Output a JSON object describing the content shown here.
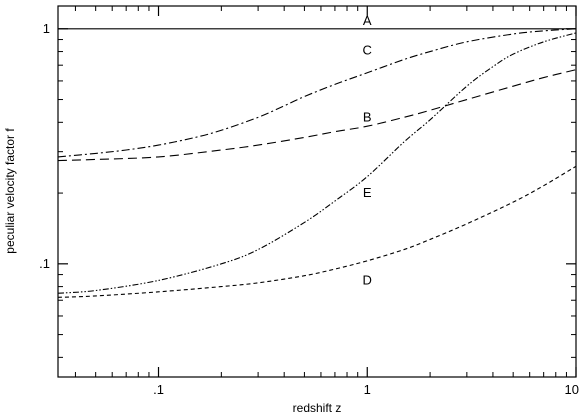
{
  "chart_data": {
    "type": "line",
    "title": "",
    "xlabel": "redshift z",
    "ylabel": "peculiar velocity factor f",
    "xscale": "log",
    "yscale": "log",
    "xlim": [
      0.033,
      10
    ],
    "ylim": [
      0.033,
      1.25
    ],
    "grid": false,
    "legend": "none",
    "x_ticks": [
      {
        "value": 0.1,
        "label": ".1"
      },
      {
        "value": 1,
        "label": "1"
      },
      {
        "value": 10,
        "label": "10"
      }
    ],
    "y_ticks": [
      {
        "value": 0.1,
        "label": ".1"
      },
      {
        "value": 1,
        "label": "1"
      }
    ],
    "x_minor_ticks": [
      0.04,
      0.05,
      0.06,
      0.07,
      0.08,
      0.09,
      0.2,
      0.3,
      0.4,
      0.5,
      0.6,
      0.7,
      0.8,
      0.9,
      2,
      3,
      4,
      5,
      6,
      7,
      8,
      9
    ],
    "y_minor_ticks": [
      0.04,
      0.05,
      0.06,
      0.07,
      0.08,
      0.09,
      0.2,
      0.3,
      0.4,
      0.5,
      0.6,
      0.7,
      0.8,
      0.9
    ],
    "series": [
      {
        "label": "A",
        "label_at": [
          1,
          1.08
        ],
        "dash": "solid",
        "x": [
          0.033,
          0.1,
          0.3,
          1,
          3,
          10
        ],
        "y": [
          1,
          1,
          1,
          1,
          1,
          1
        ]
      },
      {
        "label": "C",
        "label_at": [
          1,
          0.81
        ],
        "dash": "dashdot",
        "x": [
          0.033,
          0.05,
          0.07,
          0.1,
          0.15,
          0.2,
          0.3,
          0.4,
          0.5,
          0.7,
          1,
          1.5,
          2,
          3,
          5,
          7,
          10
        ],
        "y": [
          0.285,
          0.295,
          0.305,
          0.32,
          0.345,
          0.37,
          0.42,
          0.47,
          0.515,
          0.58,
          0.65,
          0.74,
          0.8,
          0.88,
          0.95,
          0.98,
          1.0
        ]
      },
      {
        "label": "B",
        "label_at": [
          1,
          0.42
        ],
        "dash": "dashed",
        "x": [
          0.033,
          0.05,
          0.1,
          0.2,
          0.3,
          0.5,
          0.7,
          1,
          1.5,
          2,
          3,
          5,
          7,
          10
        ],
        "y": [
          0.275,
          0.278,
          0.285,
          0.305,
          0.32,
          0.345,
          0.365,
          0.385,
          0.42,
          0.45,
          0.5,
          0.57,
          0.62,
          0.67
        ]
      },
      {
        "label": "E",
        "label_at": [
          1,
          0.2
        ],
        "dash": "dashdotdot",
        "x": [
          0.033,
          0.05,
          0.1,
          0.2,
          0.3,
          0.5,
          0.7,
          1,
          1.5,
          2,
          3,
          4,
          5,
          7,
          10
        ],
        "y": [
          0.075,
          0.077,
          0.085,
          0.1,
          0.115,
          0.15,
          0.185,
          0.235,
          0.33,
          0.41,
          0.57,
          0.69,
          0.78,
          0.88,
          0.96
        ]
      },
      {
        "label": "D",
        "label_at": [
          1,
          0.085
        ],
        "dash": "shortdash",
        "x": [
          0.033,
          0.05,
          0.1,
          0.2,
          0.3,
          0.5,
          0.7,
          1,
          1.5,
          2,
          3,
          5,
          7,
          10
        ],
        "y": [
          0.072,
          0.073,
          0.076,
          0.08,
          0.083,
          0.089,
          0.095,
          0.103,
          0.115,
          0.127,
          0.148,
          0.183,
          0.215,
          0.26
        ]
      }
    ]
  }
}
